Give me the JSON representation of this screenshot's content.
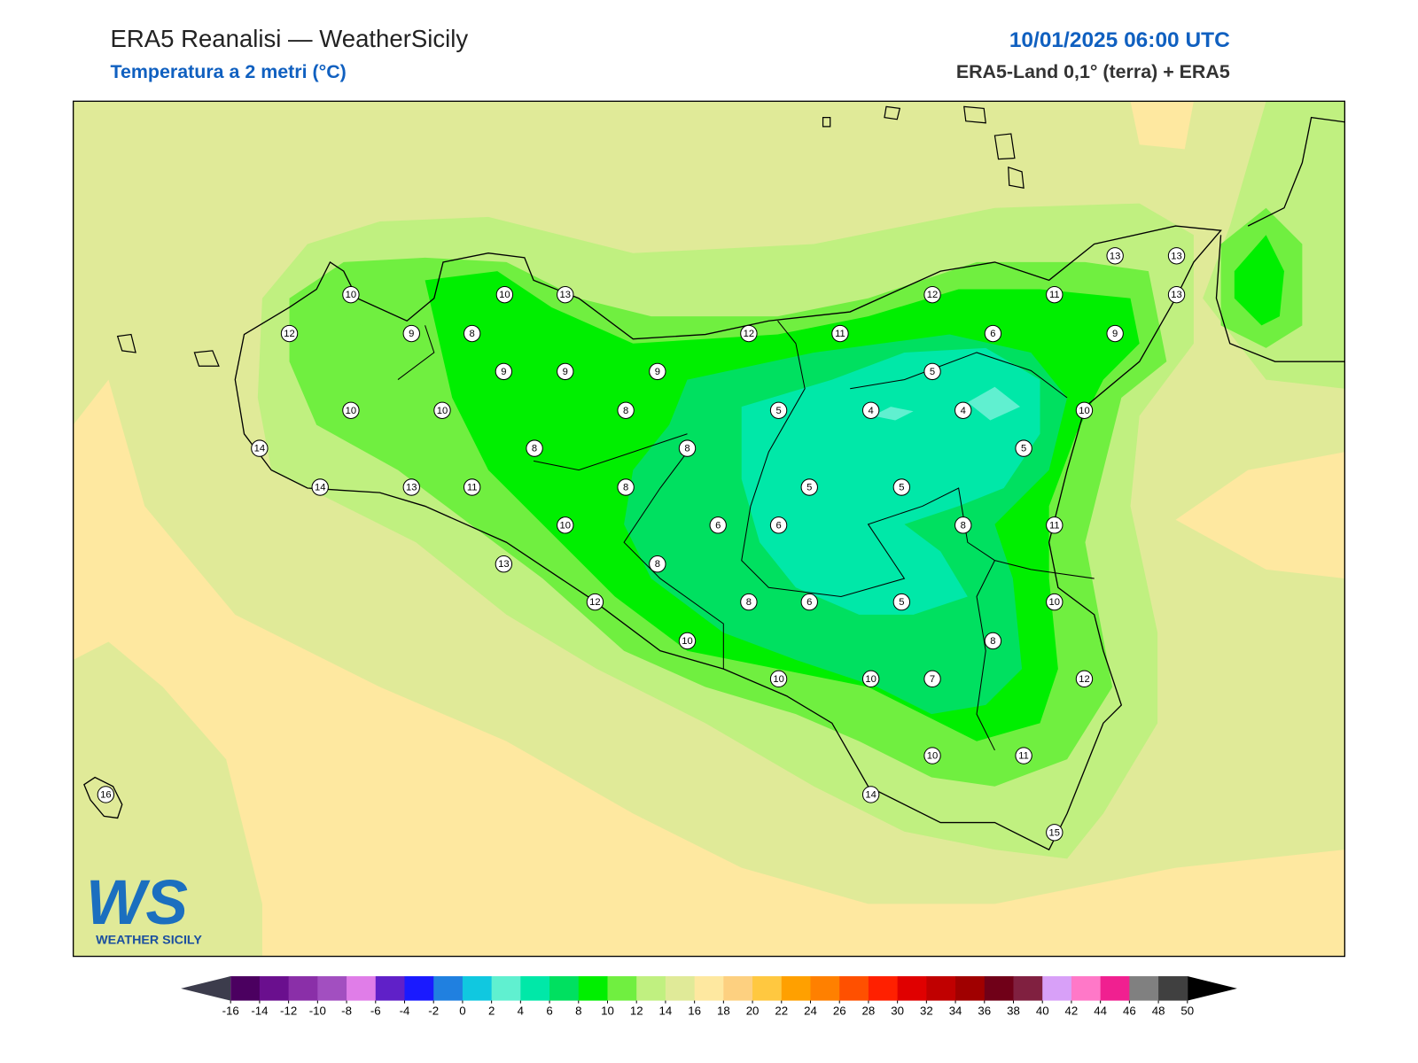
{
  "header": {
    "title": "ERA5 Reanalisi — WeatherSicily",
    "subtitle": "Temperatura a 2 metri (°C)",
    "date": "10/01/2025 06:00 UTC",
    "source": "ERA5-Land 0,1° (terra) + ERA5"
  },
  "stations": [
    10,
    10,
    13,
    12,
    9,
    8,
    9,
    9,
    9,
    10,
    10,
    8,
    14,
    8,
    8,
    14,
    13,
    11,
    8,
    10,
    6,
    6,
    13,
    8,
    12,
    8,
    6,
    10,
    10,
    12,
    11,
    5,
    4,
    5,
    5,
    5,
    10,
    7,
    12,
    6,
    5,
    4,
    5,
    8,
    11,
    13,
    13,
    13,
    9,
    10,
    11,
    10,
    8,
    12,
    10,
    11,
    14,
    15,
    16
  ],
  "colorbar": {
    "ticks": [
      -16,
      -14,
      -12,
      -10,
      -8,
      -6,
      -4,
      -2,
      0,
      2,
      4,
      6,
      8,
      10,
      12,
      14,
      16,
      18,
      20,
      22,
      24,
      26,
      28,
      30,
      32,
      34,
      36,
      38,
      40,
      42,
      44,
      46,
      48,
      50
    ],
    "colors": [
      "#4b0060",
      "#6a0f8e",
      "#8a2fa8",
      "#a24fc0",
      "#e07de8",
      "#6020c8",
      "#1a1aff",
      "#2080e0",
      "#10c8e0",
      "#60f0d0",
      "#00e8a8",
      "#00e060",
      "#00ef00",
      "#70ef40",
      "#c0f080",
      "#e0ea98",
      "#fee8a0",
      "#fdd080",
      "#ffc840",
      "#ffa000",
      "#ff8000",
      "#ff5000",
      "#ff2000",
      "#e00000",
      "#c00000",
      "#a00000",
      "#700018",
      "#802040",
      "#d8a0f8",
      "#ff78c8",
      "#f02090",
      "#808080",
      "#404040"
    ],
    "under_color": "#3c3c4c",
    "over_color": "#000000"
  },
  "logo": {
    "mark": "WS",
    "text": "WEATHER SICILY"
  }
}
